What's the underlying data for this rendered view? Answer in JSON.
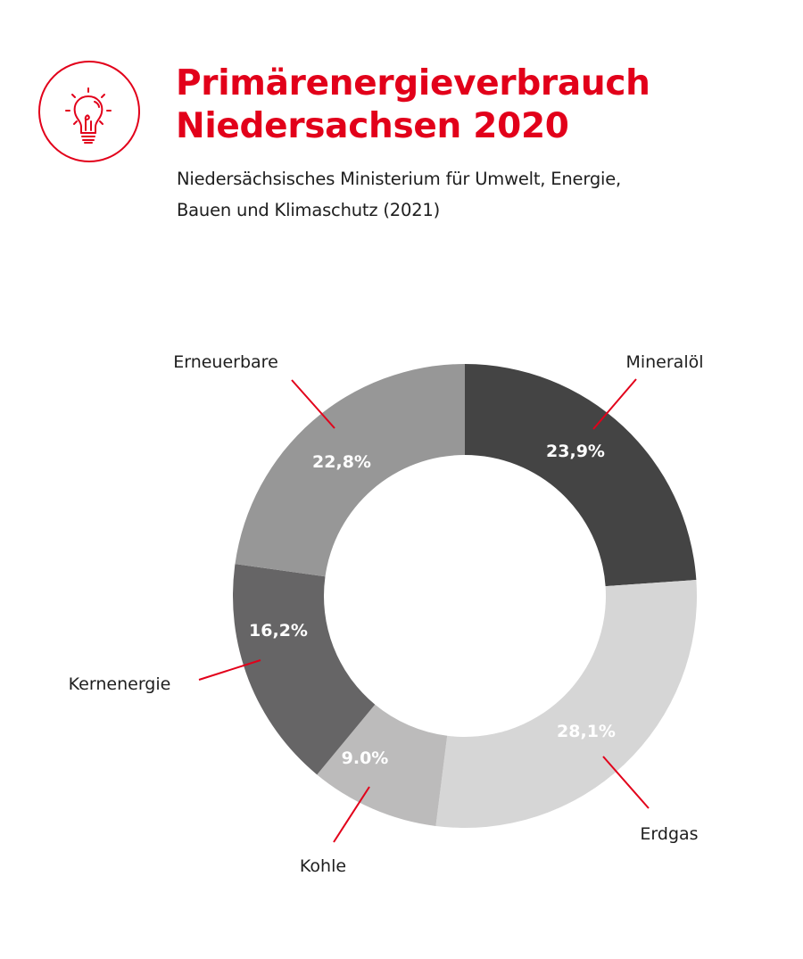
{
  "header": {
    "icon": "lightbulb-icon",
    "title_line1": "Primärenergieverbrauch",
    "title_line2": "Niedersachsen 2020",
    "subtitle_line1": "Niedersächsisches Ministerium für Umwelt, Energie,",
    "subtitle_line2": "Bauen und Klimaschutz (2021)"
  },
  "colors": {
    "accent": "#e2001a",
    "text": "#1e1e1e"
  },
  "chart_data": {
    "type": "pie",
    "variant": "donut",
    "title": "Primärenergieverbrauch Niedersachsen 2020",
    "source": "Niedersächsisches Ministerium für Umwelt, Energie, Bauen und Klimaschutz (2021)",
    "unit": "%",
    "start": "12 o'clock",
    "direction": "clockwise",
    "slices": [
      {
        "name": "Mineralöl",
        "value": 23.9,
        "label": "23,9%",
        "color": "#444444",
        "label_side": "top-right"
      },
      {
        "name": "Erdgas",
        "value": 28.1,
        "label": "28,1%",
        "color": "#d6d6d6",
        "label_side": "bottom-right"
      },
      {
        "name": "Kohle",
        "value": 9.0,
        "label": "9.0%",
        "color": "#bcbbbb",
        "label_side": "bottom"
      },
      {
        "name": "Kernenergie",
        "value": 16.2,
        "label": "16,2%",
        "color": "#666566",
        "label_side": "left"
      },
      {
        "name": "Erneuerbare",
        "value": 22.8,
        "label": "22,8%",
        "color": "#979797",
        "label_side": "top-left"
      }
    ],
    "leader_line_color": "#e2001a",
    "legend": "none (labels placed next to slices)"
  }
}
